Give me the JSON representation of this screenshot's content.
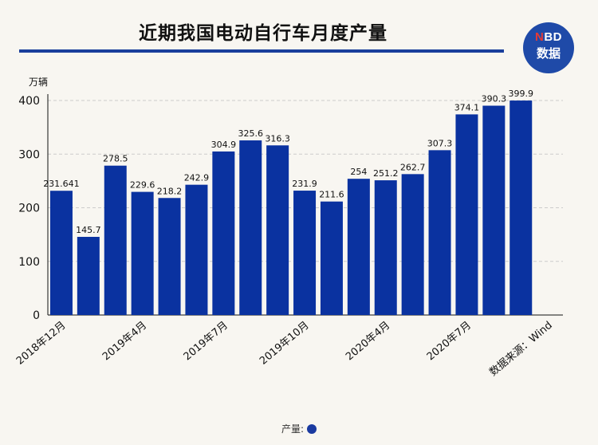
{
  "title": "近期我国电动自行车月度产量",
  "logo": {
    "top_n": "N",
    "top_rest": "BD",
    "bottom": "数据"
  },
  "unit_label": "万辆",
  "legend_label": "产量:",
  "colors": {
    "bar": "#0a32a0",
    "accent": "#1a3f9c",
    "grid": "#cccccc"
  },
  "chart_data": {
    "type": "bar",
    "ylabel": "万辆",
    "ylim": [
      0,
      400
    ],
    "yticks": [
      0,
      100,
      200,
      300,
      400
    ],
    "grid": true,
    "values": [
      231.641,
      145.7,
      278.5,
      229.6,
      218.2,
      242.9,
      304.9,
      325.6,
      316.3,
      231.9,
      211.6,
      254,
      251.2,
      262.7,
      307.3,
      374.1,
      390.3,
      399.9
    ],
    "value_labels": [
      "231.641",
      "145.7",
      "278.5",
      "229.6",
      "218.2",
      "242.9",
      "304.9",
      "325.6",
      "316.3",
      "231.9",
      "211.6",
      "254",
      "251.2",
      "262.7",
      "307.3",
      "374.1",
      "390.3",
      "399.9"
    ],
    "xtick_labels": [
      {
        "index": 0,
        "label": "2018年12月"
      },
      {
        "index": 3,
        "label": "2019年4月"
      },
      {
        "index": 6,
        "label": "2019年7月"
      },
      {
        "index": 9,
        "label": "2019年10月"
      },
      {
        "index": 12,
        "label": "2020年4月"
      },
      {
        "index": 15,
        "label": "2020年7月"
      },
      {
        "index": 18,
        "label": "数据来源：Wind"
      }
    ],
    "series": [
      {
        "name": "产量"
      }
    ]
  }
}
